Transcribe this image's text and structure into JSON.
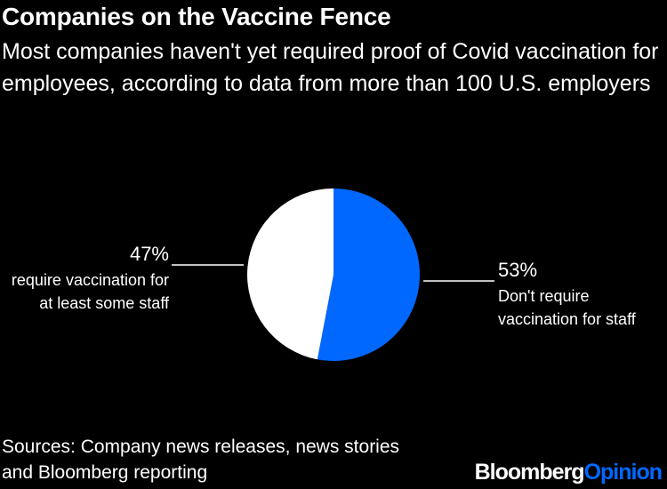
{
  "header": {
    "title": "Companies on the Vaccine Fence",
    "subtitle": "Most companies haven't yet required proof of Covid vaccination for employees, according to data from more than 100 U.S. employers"
  },
  "footer": {
    "source": "Sources: Company news releases, news stories and Bloomberg reporting",
    "brand_part1": "Bloomberg",
    "brand_part2": "Opinion"
  },
  "colors": {
    "background": "#000000",
    "text": "#ffffff",
    "require_slice": "#ffffff",
    "dont_require_slice": "#0068ff",
    "brand_accent": "#0068ff"
  },
  "chart_data": {
    "type": "pie",
    "slices": [
      {
        "label_line1": "Don't require",
        "label_line2": "vaccination for staff",
        "value": 53,
        "value_label": "53%",
        "color": "#0068ff"
      },
      {
        "label_line1": "require vaccination for",
        "label_line2": "at least some staff",
        "value": 47,
        "value_label": "47%",
        "color": "#ffffff"
      }
    ]
  }
}
